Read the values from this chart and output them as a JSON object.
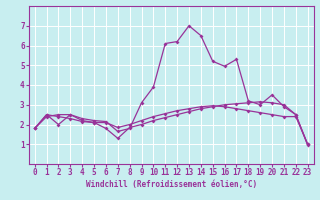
{
  "title": "",
  "xlabel": "Windchill (Refroidissement éolien,°C)",
  "background_color": "#c8eef0",
  "line_color": "#993399",
  "grid_color": "#ffffff",
  "xlim": [
    -0.5,
    23.5
  ],
  "ylim": [
    0,
    8
  ],
  "xticks": [
    0,
    1,
    2,
    3,
    4,
    5,
    6,
    7,
    8,
    9,
    10,
    11,
    12,
    13,
    14,
    15,
    16,
    17,
    18,
    19,
    20,
    21,
    22,
    23
  ],
  "yticks": [
    1,
    2,
    3,
    4,
    5,
    6,
    7
  ],
  "series": [
    [
      1.8,
      2.5,
      2.0,
      2.5,
      2.2,
      2.1,
      1.8,
      1.3,
      1.85,
      2.0,
      2.2,
      2.35,
      2.5,
      2.65,
      2.8,
      2.9,
      3.0,
      3.05,
      3.1,
      3.15,
      3.1,
      3.0,
      2.5,
      1.0
    ],
    [
      1.8,
      2.5,
      2.4,
      2.3,
      2.15,
      2.1,
      2.1,
      1.85,
      2.0,
      2.2,
      2.4,
      2.55,
      2.7,
      2.8,
      2.9,
      2.95,
      2.9,
      2.8,
      2.7,
      2.6,
      2.5,
      2.4,
      2.4,
      1.0
    ],
    [
      1.8,
      2.4,
      2.5,
      2.5,
      2.3,
      2.2,
      2.15,
      1.65,
      1.8,
      3.1,
      3.9,
      6.1,
      6.2,
      7.0,
      6.5,
      5.2,
      4.95,
      5.3,
      3.2,
      3.0,
      3.5,
      2.9,
      2.5,
      0.95
    ]
  ],
  "tick_fontsize": 5.5,
  "xlabel_fontsize": 5.5,
  "marker_size": 2.0,
  "line_width": 0.9
}
